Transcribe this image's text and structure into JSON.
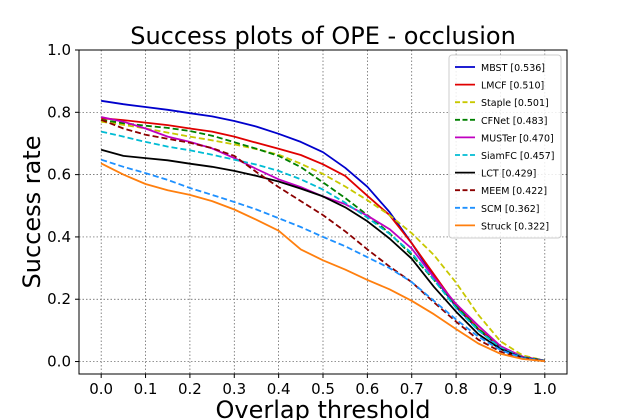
{
  "chart_data": {
    "type": "line",
    "title": "Success plots of OPE - occlusion",
    "xlabel": "Overlap threshold",
    "ylabel": "Success rate",
    "xlim": [
      -0.05,
      1.05
    ],
    "ylim": [
      -0.04,
      1.0
    ],
    "xticks": [
      "0.0",
      "0.1",
      "0.2",
      "0.3",
      "0.4",
      "0.5",
      "0.6",
      "0.7",
      "0.8",
      "0.9",
      "1.0"
    ],
    "yticks": [
      "0.0",
      "0.2",
      "0.4",
      "0.6",
      "0.8",
      "1.0"
    ],
    "grid": true,
    "legend_position": "top-right",
    "x": [
      0.0,
      0.05,
      0.1,
      0.15,
      0.2,
      0.25,
      0.3,
      0.35,
      0.4,
      0.45,
      0.5,
      0.55,
      0.6,
      0.65,
      0.7,
      0.75,
      0.8,
      0.85,
      0.9,
      0.95,
      1.0
    ],
    "series": [
      {
        "name": "MBST [0.536]",
        "color": "#0000cc",
        "dash": "solid",
        "values": [
          0.837,
          0.826,
          0.817,
          0.808,
          0.797,
          0.787,
          0.772,
          0.754,
          0.731,
          0.705,
          0.672,
          0.622,
          0.561,
          0.48,
          0.38,
          0.272,
          0.175,
          0.102,
          0.045,
          0.015,
          0.003
        ]
      },
      {
        "name": "LMCF [0.510]",
        "color": "#e00000",
        "dash": "solid",
        "values": [
          0.781,
          0.775,
          0.767,
          0.759,
          0.748,
          0.738,
          0.722,
          0.702,
          0.683,
          0.663,
          0.633,
          0.596,
          0.532,
          0.47,
          0.38,
          0.28,
          0.18,
          0.105,
          0.048,
          0.016,
          0.003
        ]
      },
      {
        "name": "Staple [0.501]",
        "color": "#c8c800",
        "dash": "dashed",
        "values": [
          0.77,
          0.76,
          0.748,
          0.735,
          0.722,
          0.71,
          0.697,
          0.682,
          0.664,
          0.635,
          0.602,
          0.562,
          0.518,
          0.47,
          0.412,
          0.342,
          0.253,
          0.15,
          0.065,
          0.02,
          0.003
        ]
      },
      {
        "name": "CFNet [0.483]",
        "color": "#008000",
        "dash": "dashed",
        "values": [
          0.776,
          0.765,
          0.757,
          0.75,
          0.74,
          0.725,
          0.704,
          0.683,
          0.66,
          0.624,
          0.575,
          0.525,
          0.47,
          0.412,
          0.342,
          0.262,
          0.18,
          0.105,
          0.048,
          0.015,
          0.003
        ]
      },
      {
        "name": "MUSTer [0.470]",
        "color": "#c000c0",
        "dash": "solid",
        "values": [
          0.785,
          0.77,
          0.748,
          0.722,
          0.705,
          0.684,
          0.653,
          0.618,
          0.585,
          0.56,
          0.53,
          0.505,
          0.468,
          0.425,
          0.363,
          0.27,
          0.185,
          0.115,
          0.05,
          0.015,
          0.003
        ]
      },
      {
        "name": "SiamFC [0.457]",
        "color": "#00bcd4",
        "dash": "dashed",
        "values": [
          0.738,
          0.722,
          0.705,
          0.69,
          0.678,
          0.664,
          0.648,
          0.632,
          0.612,
          0.585,
          0.552,
          0.51,
          0.462,
          0.41,
          0.348,
          0.262,
          0.172,
          0.1,
          0.044,
          0.014,
          0.003
        ]
      },
      {
        "name": "LCT [0.429]",
        "color": "#000000",
        "dash": "solid",
        "values": [
          0.68,
          0.66,
          0.653,
          0.646,
          0.635,
          0.625,
          0.612,
          0.596,
          0.578,
          0.555,
          0.53,
          0.495,
          0.45,
          0.395,
          0.33,
          0.24,
          0.16,
          0.088,
          0.04,
          0.012,
          0.003
        ]
      },
      {
        "name": "MEEM [0.422]",
        "color": "#8b0000",
        "dash": "dashed",
        "values": [
          0.776,
          0.748,
          0.728,
          0.715,
          0.702,
          0.685,
          0.66,
          0.608,
          0.56,
          0.515,
          0.47,
          0.418,
          0.36,
          0.305,
          0.255,
          0.19,
          0.128,
          0.07,
          0.032,
          0.01,
          0.002
        ]
      },
      {
        "name": "SCM [0.362]",
        "color": "#1e90ff",
        "dash": "dashed",
        "values": [
          0.648,
          0.625,
          0.605,
          0.583,
          0.557,
          0.535,
          0.512,
          0.488,
          0.46,
          0.432,
          0.4,
          0.37,
          0.335,
          0.3,
          0.255,
          0.195,
          0.135,
          0.08,
          0.037,
          0.011,
          0.002
        ]
      },
      {
        "name": "Struck [0.322]",
        "color": "#ff7f0e",
        "dash": "solid",
        "values": [
          0.636,
          0.6,
          0.57,
          0.55,
          0.535,
          0.515,
          0.488,
          0.455,
          0.42,
          0.36,
          0.325,
          0.295,
          0.262,
          0.232,
          0.195,
          0.152,
          0.104,
          0.058,
          0.025,
          0.008,
          0.001
        ]
      }
    ]
  }
}
